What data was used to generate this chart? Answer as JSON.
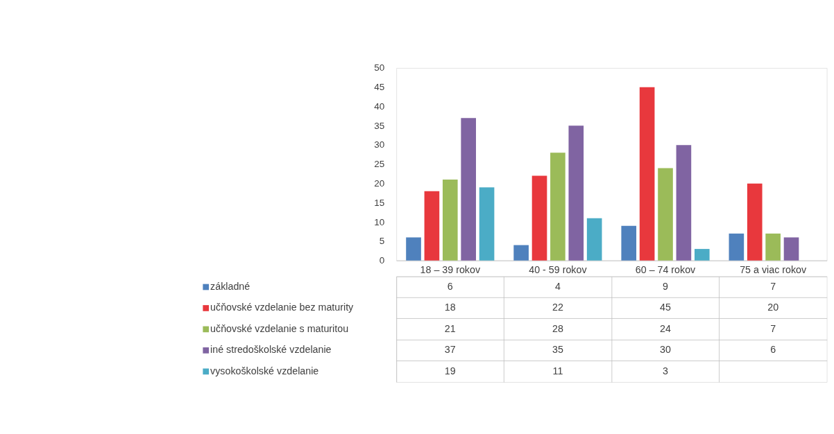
{
  "chart_data": {
    "type": "bar",
    "categories": [
      "18 – 39 rokov",
      "40 - 59 rokov",
      "60 – 74 rokov",
      "75 a viac rokov"
    ],
    "series": [
      {
        "name": "základné",
        "color": "#4f81bd",
        "values": [
          6,
          4,
          9,
          7
        ]
      },
      {
        "name": "učňovské vzdelanie bez maturity",
        "color": "#e8383d",
        "values": [
          18,
          22,
          45,
          20
        ]
      },
      {
        "name": "učňovské vzdelanie s maturitou",
        "color": "#9bbb59",
        "values": [
          21,
          28,
          24,
          7
        ]
      },
      {
        "name": "iné stredoškolské vzdelanie",
        "color": "#8064a2",
        "values": [
          37,
          35,
          30,
          6
        ]
      },
      {
        "name": "vysokoškolské vzdelanie",
        "color": "#4bacc6",
        "values": [
          19,
          11,
          3,
          null
        ]
      }
    ],
    "ylim": [
      0,
      50
    ],
    "yticks": [
      0,
      5,
      10,
      15,
      20,
      25,
      30,
      35,
      40,
      45,
      50
    ],
    "grid": false,
    "legend": "bottom",
    "data_labels": true
  }
}
